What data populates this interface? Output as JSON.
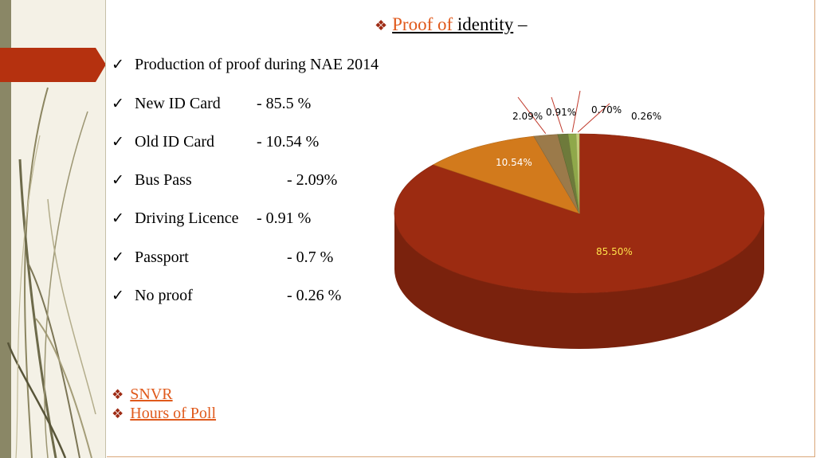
{
  "title": {
    "prefix": "Proof of ",
    "word": "identity",
    "suffix": " –"
  },
  "intro": "Production of proof during NAE 2014",
  "items": [
    {
      "label": "New ID Card",
      "value": "- 85.5 %"
    },
    {
      "label": "Old ID Card",
      "value": "- 10.54 %"
    },
    {
      "label": "Bus Pass",
      "value": "- 2.09%"
    },
    {
      "label": "Driving Licence",
      "value": "- 0.91 %"
    },
    {
      "label": "Passport",
      "value": "- 0.7 %"
    },
    {
      "label": "No proof",
      "value": "- 0.26 %"
    }
  ],
  "links": [
    "SNVR",
    "Hours of Poll"
  ],
  "chart_data": {
    "type": "pie",
    "title": "",
    "legend": "none",
    "slices": [
      {
        "value": 85.5,
        "label": "85.50%",
        "color": "#9c2b11"
      },
      {
        "value": 10.54,
        "label": "10.54%",
        "color": "#d27a1c"
      },
      {
        "value": 2.09,
        "label": "2.09%",
        "color": "#9b7a4a"
      },
      {
        "value": 0.91,
        "label": "0.91%",
        "color": "#6e7a3b"
      },
      {
        "value": 0.7,
        "label": "0.70%",
        "color": "#8fa84a"
      },
      {
        "value": 0.26,
        "label": "0.26%",
        "color": "#c4cf7a"
      }
    ]
  },
  "colors": {
    "accent": "#e05a1c",
    "bullet": "#9e2b14",
    "sidebar_ribbon": "#b5310f"
  }
}
